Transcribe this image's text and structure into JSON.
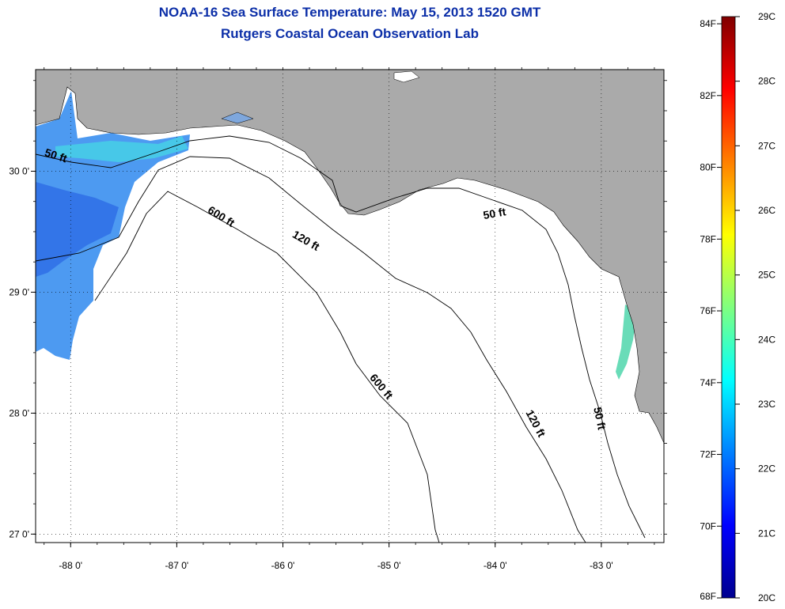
{
  "header": {
    "title": "NOAA-16 Sea Surface Temperature:  May 15, 2013 1520 GMT",
    "subtitle": "Rutgers Coastal Ocean Observation Lab"
  },
  "map": {
    "lon_range": [
      -88.33,
      -82.41
    ],
    "lat_range": [
      26.93,
      30.84
    ],
    "lon_ticks": [
      {
        "value": -88,
        "label": "-88 0'"
      },
      {
        "value": -87,
        "label": "-87 0'"
      },
      {
        "value": -86,
        "label": "-86 0'"
      },
      {
        "value": -85,
        "label": "-85 0'"
      },
      {
        "value": -84,
        "label": "-84 0'"
      },
      {
        "value": -83,
        "label": "-83 0'"
      }
    ],
    "lat_ticks": [
      {
        "value": 30,
        "label": "30 0'"
      },
      {
        "value": 29,
        "label": "29 0'"
      },
      {
        "value": 28,
        "label": "28 0'"
      },
      {
        "value": 27,
        "label": "27 0'"
      }
    ],
    "colors": {
      "land": "#aaaaaa",
      "water": "#ffffff",
      "grid": "#000000",
      "contour": "#000000"
    },
    "contour_labels": [
      {
        "text": "50 ft",
        "lon": -88.15,
        "lat": 30.1,
        "angle": 18
      },
      {
        "text": "600 ft",
        "lon": -86.6,
        "lat": 29.6,
        "angle": 32
      },
      {
        "text": "120 ft",
        "lon": -85.8,
        "lat": 29.4,
        "angle": 30
      },
      {
        "text": "50 ft",
        "lon": -84.0,
        "lat": 29.62,
        "angle": -10
      },
      {
        "text": "600 ft",
        "lon": -85.1,
        "lat": 28.2,
        "angle": 50
      },
      {
        "text": "120 ft",
        "lon": -83.65,
        "lat": 27.9,
        "angle": 62
      },
      {
        "text": "50 ft",
        "lon": -83.05,
        "lat": 27.95,
        "angle": 78
      }
    ]
  },
  "colorbar": {
    "palette": "jet",
    "min_c": 20,
    "max_c": 29,
    "celsius_labels": [
      "29C",
      "28C",
      "27C",
      "26C",
      "25C",
      "24C",
      "23C",
      "22C",
      "21C",
      "20C"
    ],
    "fahrenheit_labels": [
      "84F",
      "82F",
      "80F",
      "78F",
      "76F",
      "74F",
      "72F",
      "70F",
      "68F"
    ],
    "fahrenheit_values": [
      84,
      82,
      80,
      78,
      76,
      74,
      72,
      70,
      68
    ]
  }
}
